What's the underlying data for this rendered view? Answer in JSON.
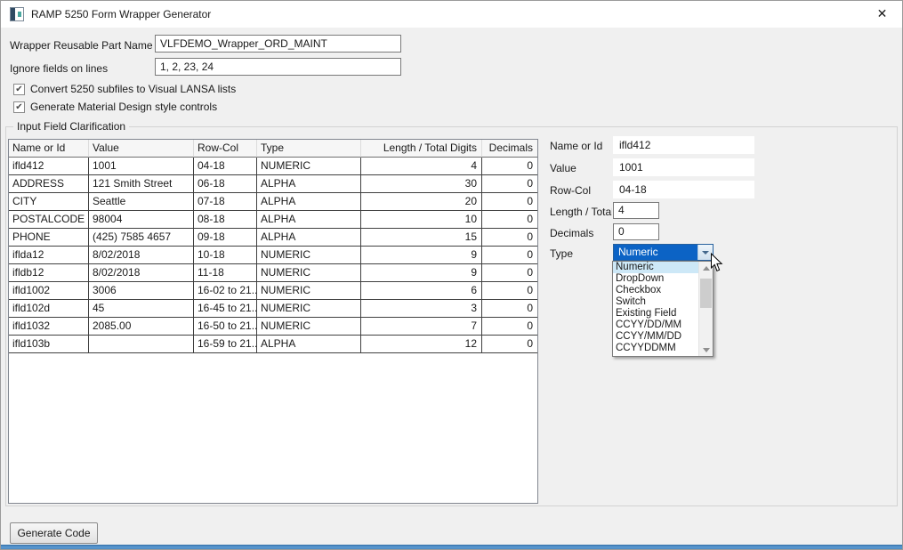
{
  "window": {
    "title": "RAMP 5250 Form Wrapper Generator"
  },
  "icons": {
    "close": "✕",
    "check": "✔"
  },
  "form": {
    "wrapper_name": {
      "label": "Wrapper Reusable Part Name",
      "value": "VLFDEMO_Wrapper_ORD_MAINT"
    },
    "ignore_lines": {
      "label": "Ignore fields on lines",
      "value": "1, 2, 23, 24"
    },
    "checkboxes": [
      {
        "label": "Convert 5250 subfiles to Visual LANSA lists",
        "checked": true
      },
      {
        "label": "Generate Material Design style controls",
        "checked": true
      }
    ]
  },
  "groupbox": {
    "title": "Input Field Clarification"
  },
  "table": {
    "columns": [
      "Name or Id",
      "Value",
      "Row-Col",
      "Type",
      "Length / Total Digits",
      "Decimals"
    ],
    "rows": [
      [
        "ifld412",
        "1001",
        "04-18",
        "NUMERIC",
        "4",
        "0"
      ],
      [
        "ADDRESS",
        "121 Smith Street",
        "06-18",
        "ALPHA",
        "30",
        "0"
      ],
      [
        "CITY",
        "Seattle",
        "07-18",
        "ALPHA",
        "20",
        "0"
      ],
      [
        "POSTALCODE",
        "98004",
        "08-18",
        "ALPHA",
        "10",
        "0"
      ],
      [
        "PHONE",
        "(425) 7585 4657",
        "09-18",
        "ALPHA",
        "15",
        "0"
      ],
      [
        "iflda12",
        "8/02/2018",
        "10-18",
        "NUMERIC",
        "9",
        "0"
      ],
      [
        "ifldb12",
        "8/02/2018",
        "11-18",
        "NUMERIC",
        "9",
        "0"
      ],
      [
        "ifld1002",
        "3006",
        "16-02 to 21...",
        "NUMERIC",
        "6",
        "0"
      ],
      [
        "ifld102d",
        "45",
        "16-45 to 21...",
        "NUMERIC",
        "3",
        "0"
      ],
      [
        "ifld1032",
        "2085.00",
        "16-50 to 21...",
        "NUMERIC",
        "7",
        "0"
      ],
      [
        "ifld103b",
        "",
        "16-59 to 21...",
        "ALPHA",
        "12",
        "0"
      ]
    ]
  },
  "detail": {
    "name": {
      "label": "Name or Id",
      "value": "ifld412"
    },
    "value": {
      "label": "Value",
      "value": "1001"
    },
    "rowcol": {
      "label": "Row-Col",
      "value": "04-18"
    },
    "length": {
      "label": "Length / Total D",
      "value": "4"
    },
    "decimals": {
      "label": "Decimals",
      "value": "0"
    },
    "type": {
      "label": "Type",
      "value": "Numeric"
    },
    "dropdown_options": [
      "Numeric",
      "DropDown",
      "Checkbox",
      "Switch",
      "Existing Field",
      "CCYY/DD/MM",
      "CCYY/MM/DD",
      "CCYYDDMM"
    ],
    "dropdown_selected": "Numeric"
  },
  "footer": {
    "generate_button": "Generate Code"
  },
  "colors": {
    "selection_blue": "#0c63c5",
    "combo_border": "#26619e",
    "dropdown_highlight": "#cde8f7",
    "bottom_bar_blue": "#5795cd",
    "window_bg": "#f0f0f0"
  }
}
